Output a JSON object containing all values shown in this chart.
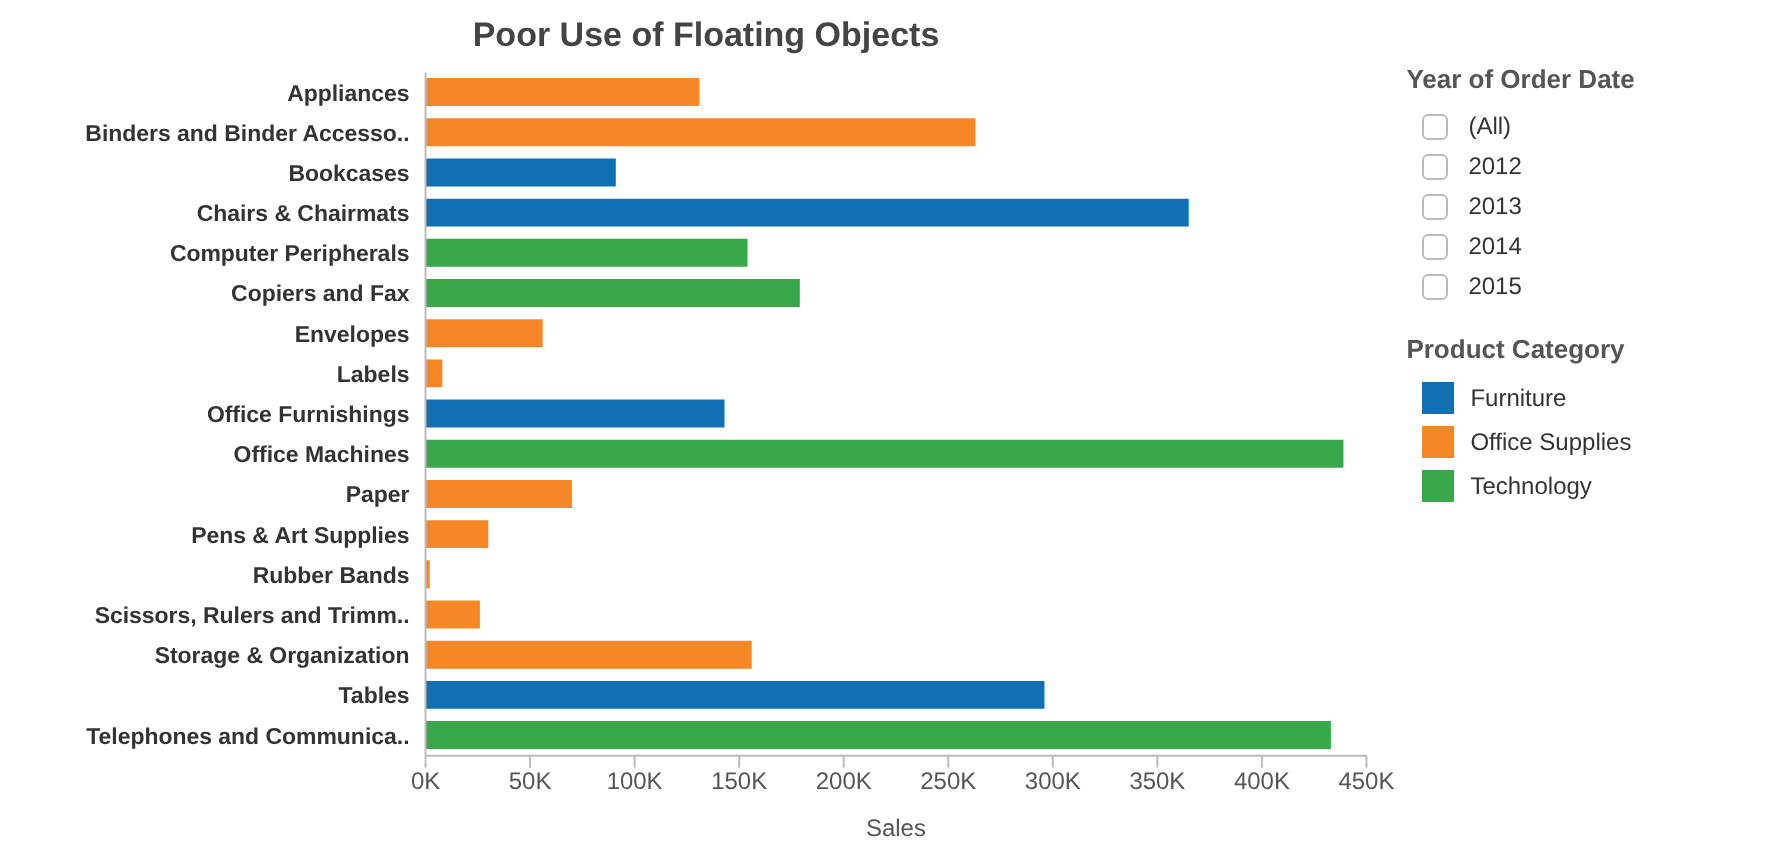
{
  "chart_data": {
    "type": "bar",
    "orientation": "horizontal",
    "stacked": true,
    "title": "Poor Use of Floating Objects",
    "xlabel": "Sales",
    "legend_title": "Product Category",
    "legend": "right",
    "categories": [
      "Appliances",
      "Binders and Binder Accesso..",
      "Bookcases",
      "Chairs & Chairmats",
      "Computer Peripherals",
      "Copiers and Fax",
      "Envelopes",
      "Labels",
      "Office Furnishings",
      "Office Machines",
      "Paper",
      "Pens & Art Supplies",
      "Rubber Bands",
      "Scissors, Rulers and Trimm..",
      "Storage & Organization",
      "Tables",
      "Telephones and Communica.."
    ],
    "series": [
      {
        "name": "Furniture",
        "color": "#1170b3",
        "values": [
          null,
          null,
          91000,
          365000,
          null,
          null,
          null,
          null,
          143000,
          null,
          null,
          null,
          null,
          null,
          null,
          296000,
          null
        ]
      },
      {
        "name": "Office Supplies",
        "color": "#f58726",
        "values": [
          131000,
          263000,
          null,
          null,
          null,
          null,
          56000,
          8000,
          null,
          null,
          70000,
          30000,
          2000,
          26000,
          156000,
          null,
          null
        ]
      },
      {
        "name": "Technology",
        "color": "#38a84a",
        "values": [
          null,
          null,
          null,
          null,
          154000,
          179000,
          null,
          null,
          null,
          439000,
          null,
          null,
          null,
          null,
          null,
          null,
          433000
        ]
      }
    ],
    "xlim": [
      0,
      450000
    ],
    "xticks": [
      {
        "value": 0,
        "label": "0K"
      },
      {
        "value": 50000,
        "label": "50K"
      },
      {
        "value": 100000,
        "label": "100K"
      },
      {
        "value": 150000,
        "label": "150K"
      },
      {
        "value": 200000,
        "label": "200K"
      },
      {
        "value": 250000,
        "label": "250K"
      },
      {
        "value": 300000,
        "label": "300K"
      },
      {
        "value": 350000,
        "label": "350K"
      },
      {
        "value": 400000,
        "label": "400K"
      },
      {
        "value": 450000,
        "label": "450K"
      }
    ],
    "annotations": [
      "Year of Order Date",
      "(All)",
      "2012",
      "2013",
      "2014",
      "2015"
    ]
  }
}
